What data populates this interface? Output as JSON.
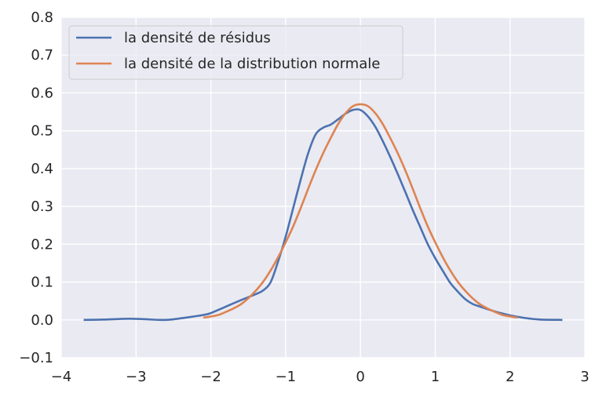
{
  "chart_data": {
    "type": "line",
    "title": "",
    "xlabel": "",
    "ylabel": "",
    "xlim": [
      -4,
      3
    ],
    "ylim": [
      -0.1,
      0.8
    ],
    "x_ticks": [
      -4,
      -3,
      -2,
      -1,
      0,
      1,
      2,
      3
    ],
    "x_tick_labels": [
      "−4",
      "−3",
      "−2",
      "−1",
      "0",
      "1",
      "2",
      "3"
    ],
    "y_ticks": [
      -0.1,
      0.0,
      0.1,
      0.2,
      0.3,
      0.4,
      0.5,
      0.6,
      0.7,
      0.8
    ],
    "y_tick_labels": [
      "−0.1",
      "0.0",
      "0.1",
      "0.2",
      "0.3",
      "0.4",
      "0.5",
      "0.6",
      "0.7",
      "0.8"
    ],
    "grid": true,
    "background": "#eaeaf2",
    "grid_color": "#ffffff",
    "legend": "top-left",
    "series": [
      {
        "name": "la densité de résidus",
        "color": "#4c72b0",
        "x": [
          -3.7,
          -3.4,
          -3.1,
          -2.9,
          -2.6,
          -2.3,
          -2.1,
          -2.0,
          -1.8,
          -1.6,
          -1.4,
          -1.3,
          -1.2,
          -1.1,
          -1.0,
          -0.9,
          -0.8,
          -0.7,
          -0.6,
          -0.5,
          -0.4,
          -0.3,
          -0.2,
          -0.1,
          0.0,
          0.1,
          0.2,
          0.3,
          0.4,
          0.5,
          0.6,
          0.7,
          0.8,
          0.9,
          1.0,
          1.1,
          1.2,
          1.3,
          1.4,
          1.5,
          1.6,
          1.8,
          2.0,
          2.2,
          2.4,
          2.7
        ],
        "y": [
          0.0,
          0.001,
          0.003,
          0.002,
          0.0,
          0.007,
          0.013,
          0.018,
          0.035,
          0.052,
          0.068,
          0.078,
          0.1,
          0.155,
          0.22,
          0.295,
          0.37,
          0.44,
          0.49,
          0.508,
          0.516,
          0.53,
          0.545,
          0.555,
          0.555,
          0.538,
          0.51,
          0.472,
          0.43,
          0.385,
          0.338,
          0.29,
          0.245,
          0.2,
          0.163,
          0.13,
          0.098,
          0.075,
          0.055,
          0.042,
          0.035,
          0.022,
          0.012,
          0.005,
          0.001,
          0.0
        ]
      },
      {
        "name": "la densité de la distribution normale",
        "color": "#dd8452",
        "mean": 0.0,
        "sd": 0.7,
        "x": [
          -2.1,
          -2.0,
          -1.9,
          -1.8,
          -1.7,
          -1.6,
          -1.5,
          -1.4,
          -1.3,
          -1.2,
          -1.1,
          -1.0,
          -0.9,
          -0.8,
          -0.7,
          -0.6,
          -0.5,
          -0.4,
          -0.3,
          -0.2,
          -0.1,
          0.0,
          0.1,
          0.2,
          0.3,
          0.4,
          0.5,
          0.6,
          0.7,
          0.8,
          0.9,
          1.0,
          1.1,
          1.2,
          1.3,
          1.4,
          1.5,
          1.6,
          1.7,
          1.8,
          1.9,
          2.0,
          2.1
        ],
        "y": [
          0.006,
          0.009,
          0.013,
          0.021,
          0.03,
          0.041,
          0.057,
          0.077,
          0.101,
          0.131,
          0.166,
          0.205,
          0.247,
          0.295,
          0.346,
          0.395,
          0.44,
          0.48,
          0.517,
          0.546,
          0.565,
          0.57,
          0.565,
          0.546,
          0.517,
          0.48,
          0.44,
          0.395,
          0.346,
          0.295,
          0.247,
          0.205,
          0.166,
          0.131,
          0.101,
          0.077,
          0.057,
          0.041,
          0.03,
          0.021,
          0.013,
          0.009,
          0.006
        ]
      }
    ]
  }
}
